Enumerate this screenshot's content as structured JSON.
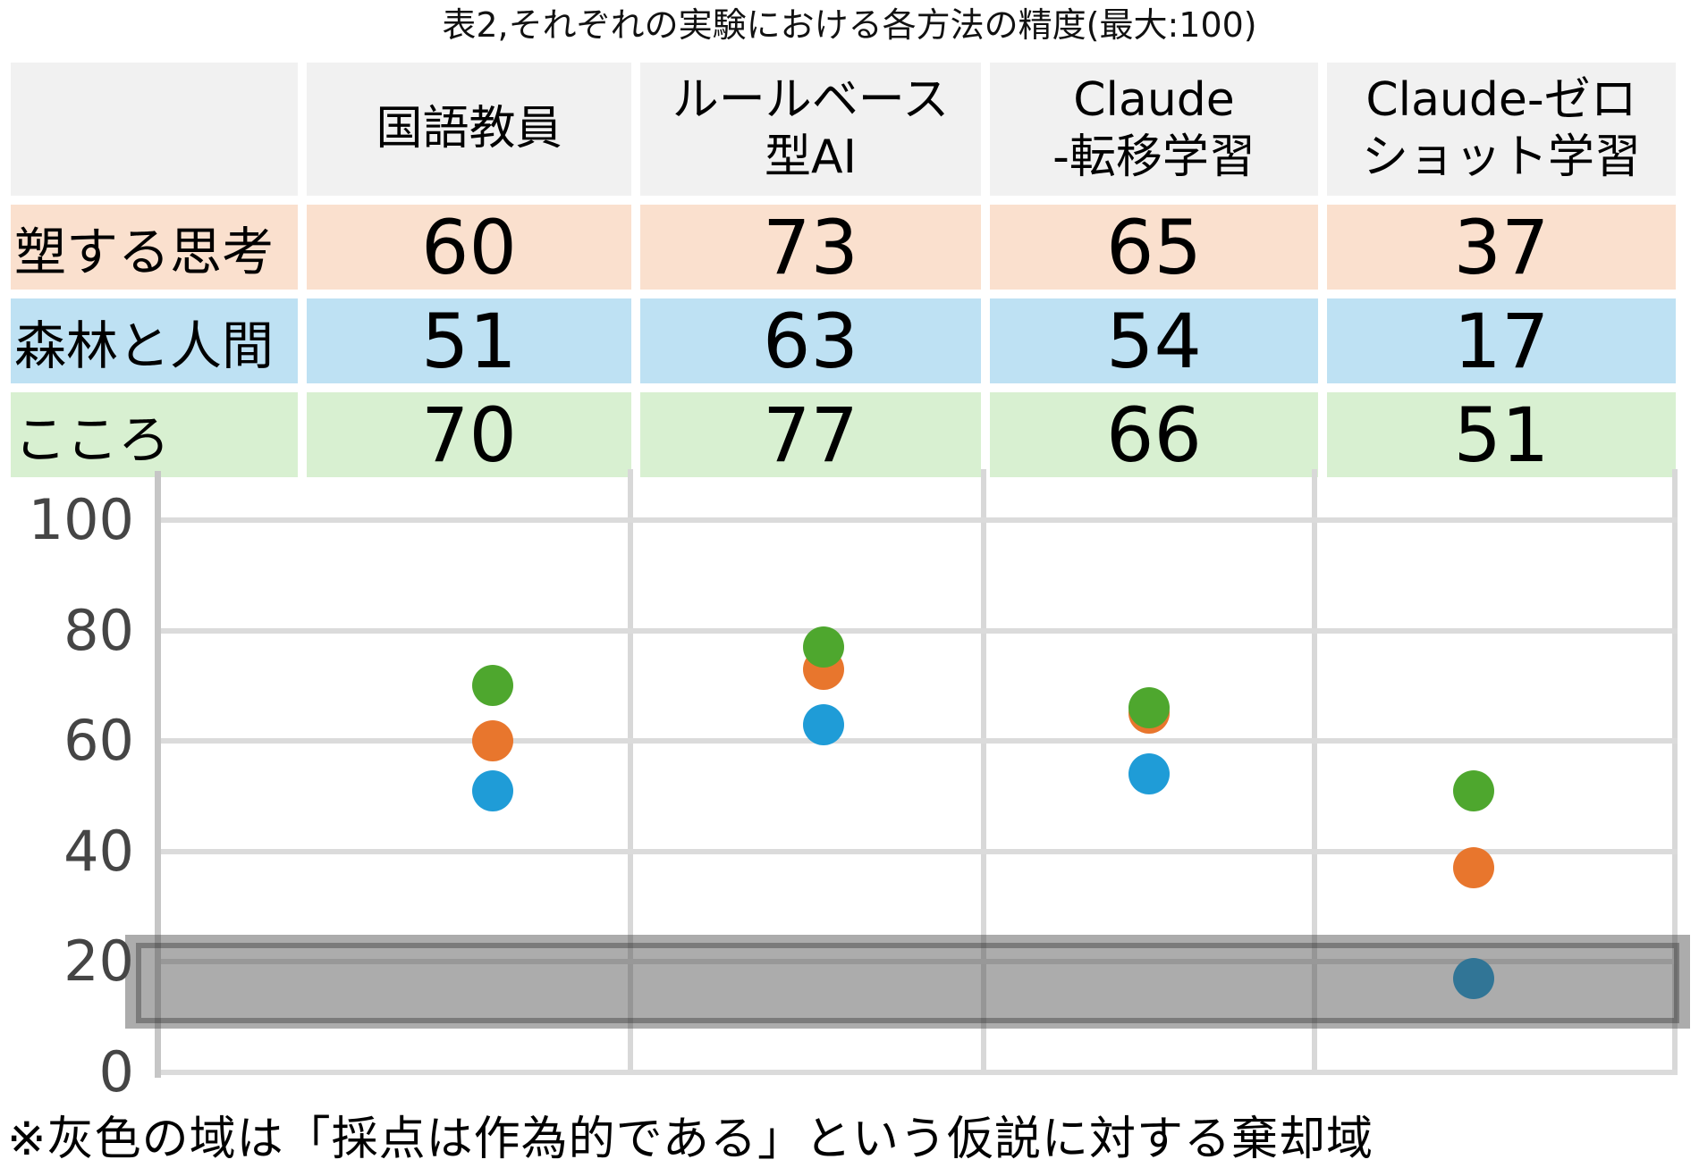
{
  "title": "表2,それぞれの実験における各方法の精度(最大:100)",
  "note": "※灰色の域は「採点は作為的である」という仮説に対する棄却域",
  "table": {
    "corner_label": "",
    "header_bg": "#F1F1F1",
    "column_headers": [
      "国語教員",
      "ルールベース\n型AI",
      "Claude\n-転移学習",
      "Claude-ゼロ\nショット学習"
    ],
    "rows": [
      {
        "label": "塑する思考",
        "row_color": "#FAE0CE",
        "values": [
          "60",
          "73",
          "65",
          "37"
        ]
      },
      {
        "label": "森林と人間",
        "row_color": "#BEE1F3",
        "values": [
          "51",
          "63",
          "54",
          "17"
        ]
      },
      {
        "label": "こころ",
        "row_color": "#D8F0D1",
        "values": [
          "70",
          "77",
          "66",
          "51"
        ]
      }
    ]
  },
  "chart_data": {
    "type": "scatter",
    "categories": [
      "国語教員",
      "ルールベース型AI",
      "Claude-転移学習",
      "Claude-ゼロショット学習"
    ],
    "series": [
      {
        "name": "塑する思考",
        "color": "#E8762D",
        "values": [
          60,
          73,
          65,
          37
        ]
      },
      {
        "name": "森林と人間",
        "color": "#1F9CD7",
        "values": [
          51,
          63,
          54,
          17
        ]
      },
      {
        "name": "こころ",
        "color": "#4EA72E",
        "values": [
          70,
          77,
          66,
          51
        ]
      }
    ],
    "ylim": [
      0,
      100
    ],
    "yticks": [
      0,
      20,
      40,
      60,
      80,
      100
    ],
    "ytick_labels": [
      "0",
      "20",
      "40",
      "60",
      "80",
      "100"
    ],
    "grid": {
      "horizontal": true,
      "vertical_category_boundaries": true
    },
    "gridline_color": "#DBDBDB",
    "legend": "none",
    "rejection_band": {
      "outer_value_range": [
        7.9,
        25
      ],
      "inner_value_range": [
        8.9,
        23.5
      ],
      "fill": "rgba(72,72,72,0.45)"
    }
  }
}
